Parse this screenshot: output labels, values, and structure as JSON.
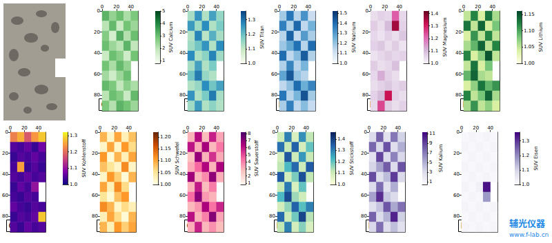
{
  "chart_data": [
    {
      "type": "heatmap",
      "label": "Ca",
      "xlim": [
        0,
        50
      ],
      "xticks": [
        0,
        20,
        40
      ],
      "ylim": [
        0,
        95
      ],
      "yticks": [
        0,
        20,
        40,
        60,
        80
      ],
      "colorbar": {
        "label": "SUV Calcium",
        "range": [
          0.8,
          5
        ],
        "ticks": [
          1,
          2,
          3,
          4,
          5
        ],
        "colors": [
          "#f7fcf5",
          "#c7e9c0",
          "#74c476",
          "#238b45",
          "#00441b"
        ]
      },
      "cells": [
        [
          3.2,
          2.5,
          3.0,
          2.2,
          2.8
        ],
        [
          2.0,
          3.1,
          1.8,
          2.9,
          2.4
        ],
        [
          2.7,
          1.6,
          3.3,
          2.1,
          3.0
        ],
        [
          3.0,
          2.4,
          2.0,
          3.2,
          1.9
        ],
        [
          1.8,
          3.0,
          2.6,
          1.7,
          2.9
        ],
        [
          2.9,
          2.2,
          3.1,
          2.5,
          null
        ],
        [
          2.3,
          1.7,
          2.4,
          3.0,
          null
        ],
        [
          3.1,
          2.8,
          1.9,
          2.6,
          2.2
        ],
        [
          2.0,
          3.0,
          2.7,
          1.8,
          3.1
        ],
        [
          2.8,
          2.1,
          3.2,
          2.9,
          2.4
        ]
      ]
    },
    {
      "type": "heatmap",
      "label": "Ti",
      "xlim": [
        0,
        50
      ],
      "xticks": [
        0,
        20,
        40
      ],
      "ylim": [
        0,
        95
      ],
      "yticks": [
        0,
        20,
        40,
        60,
        80
      ],
      "colorbar": {
        "label": "SUV Titan",
        "range": [
          1.0,
          1.36
        ],
        "ticks": [
          {
            "value": 1,
            "label": "1.0"
          },
          1.1,
          1.2,
          1.3
        ],
        "colors": [
          "#f7fcf0",
          "#ccebc5",
          "#7bccc4",
          "#2b8cbe",
          "#084081"
        ]
      },
      "cells": [
        [
          1.13,
          1.26,
          1.12,
          1.24,
          1.15
        ],
        [
          1.25,
          1.14,
          1.27,
          1.12,
          1.18
        ],
        [
          1.12,
          1.28,
          1.11,
          1.22,
          1.13
        ],
        [
          1.14,
          1.19,
          1.26,
          1.12,
          1.27
        ],
        [
          1.27,
          1.12,
          1.16,
          1.28,
          1.14
        ],
        [
          1.13,
          1.24,
          1.12,
          1.18,
          null
        ],
        [
          1.19,
          1.29,
          1.15,
          1.12,
          null
        ],
        [
          1.12,
          1.15,
          1.27,
          1.19,
          1.24
        ],
        [
          1.26,
          1.12,
          1.18,
          1.29,
          1.13
        ],
        [
          1.14,
          1.25,
          1.12,
          1.16,
          1.12
        ]
      ]
    },
    {
      "type": "heatmap",
      "label": "Na",
      "xlim": [
        0,
        50
      ],
      "xticks": [
        0,
        20,
        40
      ],
      "ylim": [
        0,
        95
      ],
      "yticks": [
        0,
        20,
        40,
        60,
        80
      ],
      "colorbar": {
        "label": "SUV Natrium",
        "range": [
          1.0,
          1.52
        ],
        "ticks": [
          {
            "value": 1,
            "label": "1.0"
          },
          1.1,
          1.2,
          1.3,
          1.4,
          1.5
        ],
        "colors": [
          "#f7fbff",
          "#c6dbef",
          "#6baed6",
          "#2171b5",
          "#08306b"
        ]
      },
      "cells": [
        [
          1.18,
          1.38,
          1.15,
          1.32,
          1.12
        ],
        [
          1.36,
          1.16,
          1.41,
          1.14,
          1.25
        ],
        [
          1.15,
          1.42,
          1.13,
          1.3,
          1.17
        ],
        [
          1.19,
          1.27,
          1.39,
          1.15,
          1.4
        ],
        [
          1.4,
          1.14,
          1.22,
          1.43,
          1.16
        ],
        [
          1.16,
          1.35,
          1.15,
          1.24,
          null
        ],
        [
          1.28,
          1.44,
          1.2,
          1.15,
          null
        ],
        [
          1.14,
          1.21,
          1.4,
          1.26,
          1.35
        ],
        [
          1.38,
          1.15,
          1.24,
          1.45,
          1.18
        ],
        [
          1.17,
          1.36,
          1.14,
          1.22,
          1.13
        ]
      ]
    },
    {
      "type": "heatmap",
      "label": "Mg",
      "xlim": [
        0,
        50
      ],
      "xticks": [
        0,
        20,
        40
      ],
      "ylim": [
        0,
        95
      ],
      "yticks": [
        0,
        20,
        40,
        60,
        80
      ],
      "colorbar": {
        "label": "SUV Magnesium",
        "range": [
          1.0,
          1.42
        ],
        "ticks": [
          {
            "value": 1,
            "label": "1.0"
          },
          1.1,
          1.2,
          1.3,
          1.4
        ],
        "colors": [
          "#f7f4f9",
          "#d4b9da",
          "#df65b0",
          "#ce1256",
          "#67001f"
        ]
      },
      "cells": [
        [
          1.04,
          1.06,
          1.05,
          1.22,
          1.05
        ],
        [
          1.07,
          1.04,
          1.1,
          1.36,
          1.06
        ],
        [
          1.05,
          1.03,
          1.06,
          1.04,
          1.08
        ],
        [
          1.06,
          1.08,
          1.04,
          1.07,
          1.03
        ],
        [
          1.03,
          1.05,
          1.07,
          1.05,
          1.06
        ],
        [
          1.07,
          1.04,
          1.05,
          1.09,
          null
        ],
        [
          1.05,
          1.12,
          1.06,
          1.04,
          null
        ],
        [
          1.04,
          1.06,
          1.08,
          1.05,
          1.07
        ],
        [
          1.06,
          1.1,
          1.32,
          1.06,
          1.04
        ],
        [
          1.05,
          1.25,
          1.07,
          1.04,
          1.06
        ]
      ]
    },
    {
      "type": "heatmap",
      "label": "Li",
      "xlim": [
        0,
        50
      ],
      "xticks": [
        0,
        20,
        40
      ],
      "ylim": [
        0,
        95
      ],
      "yticks": [
        0,
        20,
        40,
        60,
        80
      ],
      "colorbar": {
        "label": "SUV Lithium",
        "range": [
          1.0,
          1.16
        ],
        "ticks": [
          {
            "value": 1,
            "label": "1.00"
          },
          1.05,
          {
            "value": 1.1,
            "label": "1.10"
          },
          1.15
        ],
        "colors": [
          "#ffffe5",
          "#d9f0a3",
          "#78c679",
          "#238443",
          "#004529"
        ]
      },
      "cells": [
        [
          1.05,
          1.12,
          1.04,
          1.13,
          1.06
        ],
        [
          1.13,
          1.05,
          1.14,
          1.04,
          1.08
        ],
        [
          1.04,
          1.11,
          1.05,
          1.12,
          1.05
        ],
        [
          1.06,
          1.09,
          1.14,
          1.05,
          1.12
        ],
        [
          1.12,
          1.04,
          1.07,
          1.15,
          1.05
        ],
        [
          1.05,
          1.13,
          1.04,
          1.08,
          null
        ],
        [
          1.09,
          1.14,
          1.06,
          1.05,
          null
        ],
        [
          1.04,
          1.07,
          1.13,
          1.09,
          1.11
        ],
        [
          1.12,
          1.05,
          1.08,
          1.14,
          1.06
        ],
        [
          1.06,
          1.11,
          1.05,
          1.07,
          1.04
        ]
      ]
    },
    {
      "type": "heatmap",
      "label": "C",
      "xlim": [
        0,
        50
      ],
      "xticks": [
        0,
        20,
        40
      ],
      "ylim": [
        0,
        95
      ],
      "yticks": [
        0,
        20,
        40,
        60,
        80
      ],
      "colorbar": {
        "label": "SUV Kohlenstoff",
        "range": [
          1.0,
          1.32
        ],
        "ticks": [
          {
            "value": 1,
            "label": "1.0"
          },
          1.1,
          1.2,
          1.3
        ],
        "colors": [
          "#0d0887",
          "#7e03a8",
          "#cc4778",
          "#f89540",
          "#f0f921"
        ]
      },
      "cells": [
        [
          1.22,
          1.26,
          1.18,
          1.24,
          1.28
        ],
        [
          1.05,
          1.04,
          1.06,
          1.03,
          1.07
        ],
        [
          1.03,
          1.05,
          1.04,
          1.06,
          1.04
        ],
        [
          1.04,
          1.25,
          1.03,
          1.05,
          1.03
        ],
        [
          1.05,
          1.04,
          1.06,
          1.04,
          1.05
        ],
        [
          1.03,
          1.06,
          1.04,
          1.1,
          null
        ],
        [
          1.04,
          1.03,
          1.05,
          1.04,
          null
        ],
        [
          1.06,
          1.04,
          1.03,
          1.05,
          1.04
        ],
        [
          1.03,
          1.05,
          1.04,
          1.06,
          1.28
        ],
        [
          1.05,
          1.03,
          1.06,
          1.04,
          1.05
        ]
      ]
    },
    {
      "type": "heatmap",
      "label": "S",
      "xlim": [
        0,
        50
      ],
      "xticks": [
        0,
        20,
        40
      ],
      "ylim": [
        0,
        95
      ],
      "yticks": [
        0,
        20,
        40,
        60,
        80
      ],
      "colorbar": {
        "label": "SUV Schwefel",
        "range": [
          1.0,
          1.22
        ],
        "ticks": [
          {
            "value": 1,
            "label": "1.00"
          },
          1.05,
          {
            "value": 1.1,
            "label": "1.10"
          },
          1.15,
          {
            "value": 1.2,
            "label": "1.20"
          }
        ],
        "colors": [
          "#ffffe5",
          "#fee391",
          "#fe9929",
          "#cc4c02",
          "#662506"
        ]
      },
      "cells": [
        [
          1.09,
          1.02,
          1.1,
          1.03,
          1.08
        ],
        [
          1.02,
          1.1,
          1.02,
          1.11,
          1.06
        ],
        [
          1.11,
          1.01,
          1.09,
          1.03,
          1.1
        ],
        [
          1.08,
          1.05,
          1.02,
          1.12,
          1.02
        ],
        [
          1.02,
          1.11,
          1.07,
          1.01,
          1.09
        ],
        [
          1.1,
          1.03,
          1.12,
          1.06,
          null
        ],
        [
          1.05,
          1.01,
          1.08,
          1.11,
          null
        ],
        [
          1.12,
          1.09,
          1.02,
          1.06,
          1.03
        ],
        [
          1.03,
          1.1,
          1.06,
          1.01,
          1.09
        ],
        [
          1.09,
          1.03,
          1.11,
          1.07,
          1.1
        ]
      ]
    },
    {
      "type": "heatmap",
      "label": "O",
      "xlim": [
        0,
        50
      ],
      "xticks": [
        0,
        20,
        40
      ],
      "ylim": [
        0,
        95
      ],
      "yticks": [
        0,
        20,
        40,
        60,
        80
      ],
      "colorbar": {
        "label": "SUV Sauerstoff",
        "range": [
          0.8,
          8.2
        ],
        "ticks": [
          1,
          2,
          3,
          4,
          5,
          6,
          7,
          8
        ],
        "colors": [
          "#fff7f3",
          "#fcc5c0",
          "#f768a1",
          "#ae017e",
          "#49006a"
        ]
      },
      "cells": [
        [
          3.0,
          6.2,
          2.8,
          5.8,
          3.3
        ],
        [
          6.0,
          3.1,
          6.5,
          2.9,
          4.2
        ],
        [
          2.7,
          6.8,
          3.0,
          5.5,
          3.2
        ],
        [
          3.2,
          4.5,
          6.3,
          3.0,
          6.4
        ],
        [
          6.6,
          2.9,
          3.8,
          6.9,
          3.1
        ],
        [
          3.0,
          5.9,
          2.8,
          4.1,
          null
        ],
        [
          4.4,
          7.0,
          3.5,
          3.0,
          null
        ],
        [
          2.9,
          3.6,
          6.4,
          4.3,
          5.7
        ],
        [
          6.1,
          3.0,
          4.0,
          7.1,
          3.3
        ],
        [
          3.1,
          5.8,
          2.9,
          3.7,
          2.8
        ]
      ]
    },
    {
      "type": "heatmap",
      "label": "N",
      "xlim": [
        0,
        50
      ],
      "xticks": [
        0,
        20,
        40
      ],
      "ylim": [
        0,
        95
      ],
      "yticks": [
        0,
        20,
        40,
        60,
        80
      ],
      "colorbar": {
        "label": "SUV Stickstoff",
        "range": [
          1.0,
          1.46
        ],
        "ticks": [
          {
            "value": 1,
            "label": "1.0"
          },
          1.1,
          1.2,
          1.3,
          1.4
        ],
        "colors": [
          "#ffffd9",
          "#c7e9b4",
          "#41b6c4",
          "#225ea8",
          "#081d58"
        ]
      },
      "cells": [
        [
          1.1,
          1.3,
          1.08,
          1.28,
          1.12
        ],
        [
          1.32,
          1.11,
          1.34,
          1.09,
          1.2
        ],
        [
          1.09,
          1.36,
          1.1,
          1.27,
          1.11
        ],
        [
          1.12,
          1.22,
          1.33,
          1.1,
          1.35
        ],
        [
          1.35,
          1.09,
          1.18,
          1.37,
          1.12
        ],
        [
          1.11,
          1.31,
          1.08,
          1.2,
          null
        ],
        [
          1.22,
          1.38,
          1.15,
          1.1,
          null
        ],
        [
          1.09,
          1.16,
          1.34,
          1.21,
          1.3
        ],
        [
          1.33,
          1.1,
          1.19,
          1.39,
          1.13
        ],
        [
          1.12,
          1.3,
          1.09,
          1.17,
          1.08
        ]
      ]
    },
    {
      "type": "heatmap",
      "label": "K",
      "xlim": [
        0,
        50
      ],
      "xticks": [
        0,
        20,
        40
      ],
      "ylim": [
        0,
        95
      ],
      "yticks": [
        0,
        20,
        40,
        60,
        80
      ],
      "colorbar": {
        "label": "SUV Kalium",
        "range": [
          0.5,
          11.3
        ],
        "ticks": [
          1,
          3,
          5,
          7,
          9,
          11
        ],
        "colors": [
          "#fcfbfd",
          "#dadaeb",
          "#9e9ac8",
          "#6a51a3",
          "#3f007d"
        ]
      },
      "cells": [
        [
          3.0,
          8.0,
          2.5,
          7.2,
          3.5
        ],
        [
          7.8,
          3.2,
          8.6,
          2.8,
          5.0
        ],
        [
          2.6,
          9.0,
          3.0,
          6.8,
          3.3
        ],
        [
          3.4,
          5.5,
          8.2,
          3.0,
          8.5
        ],
        [
          8.8,
          2.9,
          4.5,
          9.4,
          3.2
        ],
        [
          3.1,
          7.6,
          2.7,
          5.1,
          null
        ],
        [
          5.6,
          9.8,
          4.0,
          3.1,
          null
        ],
        [
          2.8,
          4.2,
          8.4,
          5.3,
          7.4
        ],
        [
          8.0,
          3.0,
          4.9,
          10.2,
          3.6
        ],
        [
          3.3,
          7.5,
          2.9,
          4.4,
          2.7
        ]
      ]
    },
    {
      "type": "heatmap",
      "label": "Fe",
      "xlim": [
        0,
        50
      ],
      "xticks": [
        0,
        20,
        40
      ],
      "ylim": [
        0,
        95
      ],
      "yticks": [
        0,
        20,
        40,
        60,
        80
      ],
      "colorbar": {
        "label": "SUV Eisen",
        "range": [
          1.0,
          1.36
        ],
        "ticks": [
          {
            "value": 1,
            "label": "1.0"
          },
          1.1,
          1.2,
          1.3
        ],
        "colors": [
          "#fcfbfd",
          "#dadaeb",
          "#9e9ac8",
          "#6a51a3",
          "#3f007d"
        ]
      },
      "cells": [
        [
          1.01,
          1.02,
          1.01,
          1.02,
          1.01
        ],
        [
          1.02,
          1.01,
          1.02,
          1.01,
          1.02
        ],
        [
          1.01,
          1.02,
          1.01,
          1.02,
          1.01
        ],
        [
          1.02,
          1.01,
          1.02,
          1.01,
          1.02
        ],
        [
          1.01,
          1.02,
          1.01,
          1.02,
          1.01
        ],
        [
          1.02,
          1.01,
          1.03,
          1.34,
          null
        ],
        [
          1.01,
          1.02,
          1.01,
          1.18,
          null
        ],
        [
          1.02,
          1.01,
          1.02,
          1.01,
          1.02
        ],
        [
          1.01,
          1.02,
          1.01,
          1.02,
          1.01
        ],
        [
          1.02,
          1.01,
          1.02,
          1.01,
          1.02
        ]
      ]
    }
  ],
  "watermark": [
    "辅光仪器",
    "www.f-lab.cn"
  ]
}
